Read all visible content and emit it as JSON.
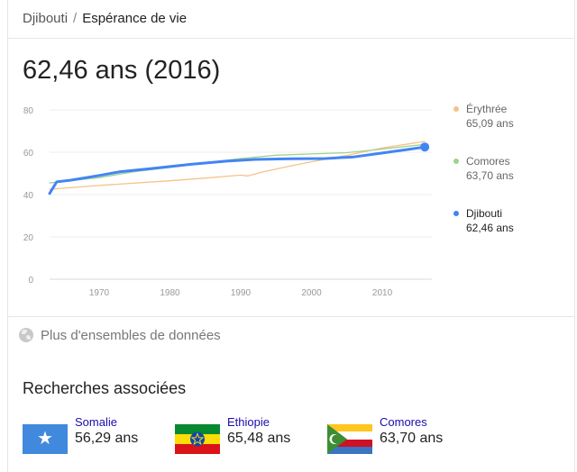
{
  "breadcrumb": {
    "country": "Djibouti",
    "separator": "/",
    "indicator": "Espérance de vie"
  },
  "headline": "62,46 ans (2016)",
  "chart_data": {
    "type": "line",
    "xlim": [
      1963,
      2017
    ],
    "ylim": [
      0,
      80
    ],
    "y_ticks": [
      0,
      20,
      40,
      60,
      80
    ],
    "y_tick_labels": [
      "0",
      "20",
      "40",
      "60",
      "80"
    ],
    "x_ticks": [
      1970,
      1980,
      1990,
      2000,
      2010
    ],
    "x_tick_labels": [
      "1970",
      "1980",
      "1990",
      "2000",
      "2010"
    ],
    "grid": true,
    "legend_position": "right",
    "highlight_series": "Djibouti",
    "series": [
      {
        "name": "Érythrée",
        "color": "#f5c28a",
        "value_label": "65,09 ans",
        "points": [
          [
            1963,
            42.5
          ],
          [
            1970,
            44.3
          ],
          [
            1980,
            46.5
          ],
          [
            1985,
            47.8
          ],
          [
            1990,
            49.2
          ],
          [
            1991,
            48.8
          ],
          [
            1993,
            50.6
          ],
          [
            1997,
            53.5
          ],
          [
            2000,
            55.5
          ],
          [
            2005,
            58.5
          ],
          [
            2010,
            62.0
          ],
          [
            2016,
            65.09
          ]
        ]
      },
      {
        "name": "Comores",
        "color": "#9fd28e",
        "value_label": "63,70 ans",
        "points": [
          [
            1963,
            45.5
          ],
          [
            1970,
            48.0
          ],
          [
            1975,
            50.8
          ],
          [
            1980,
            52.8
          ],
          [
            1985,
            55.0
          ],
          [
            1990,
            57.0
          ],
          [
            1995,
            58.6
          ],
          [
            2000,
            59.2
          ],
          [
            2005,
            59.8
          ],
          [
            2010,
            61.5
          ],
          [
            2016,
            63.7
          ]
        ]
      },
      {
        "name": "Djibouti",
        "color": "#4285f4",
        "value_label": "62,46 ans",
        "points": [
          [
            1963,
            40.5
          ],
          [
            1964,
            46.0
          ],
          [
            1966,
            46.8
          ],
          [
            1970,
            49.0
          ],
          [
            1973,
            50.8
          ],
          [
            1978,
            52.5
          ],
          [
            1983,
            54.3
          ],
          [
            1988,
            55.8
          ],
          [
            1992,
            56.6
          ],
          [
            1997,
            56.9
          ],
          [
            2002,
            57.0
          ],
          [
            2006,
            57.8
          ],
          [
            2010,
            59.6
          ],
          [
            2014,
            61.5
          ],
          [
            2016,
            62.46
          ]
        ]
      }
    ]
  },
  "more_datasets": "Plus d'ensembles de données",
  "related": {
    "title": "Recherches associées",
    "items": [
      {
        "name": "Somalie",
        "value": "56,29 ans"
      },
      {
        "name": "Ethiopie",
        "value": "65,48 ans"
      },
      {
        "name": "Comores",
        "value": "63,70 ans"
      }
    ]
  }
}
